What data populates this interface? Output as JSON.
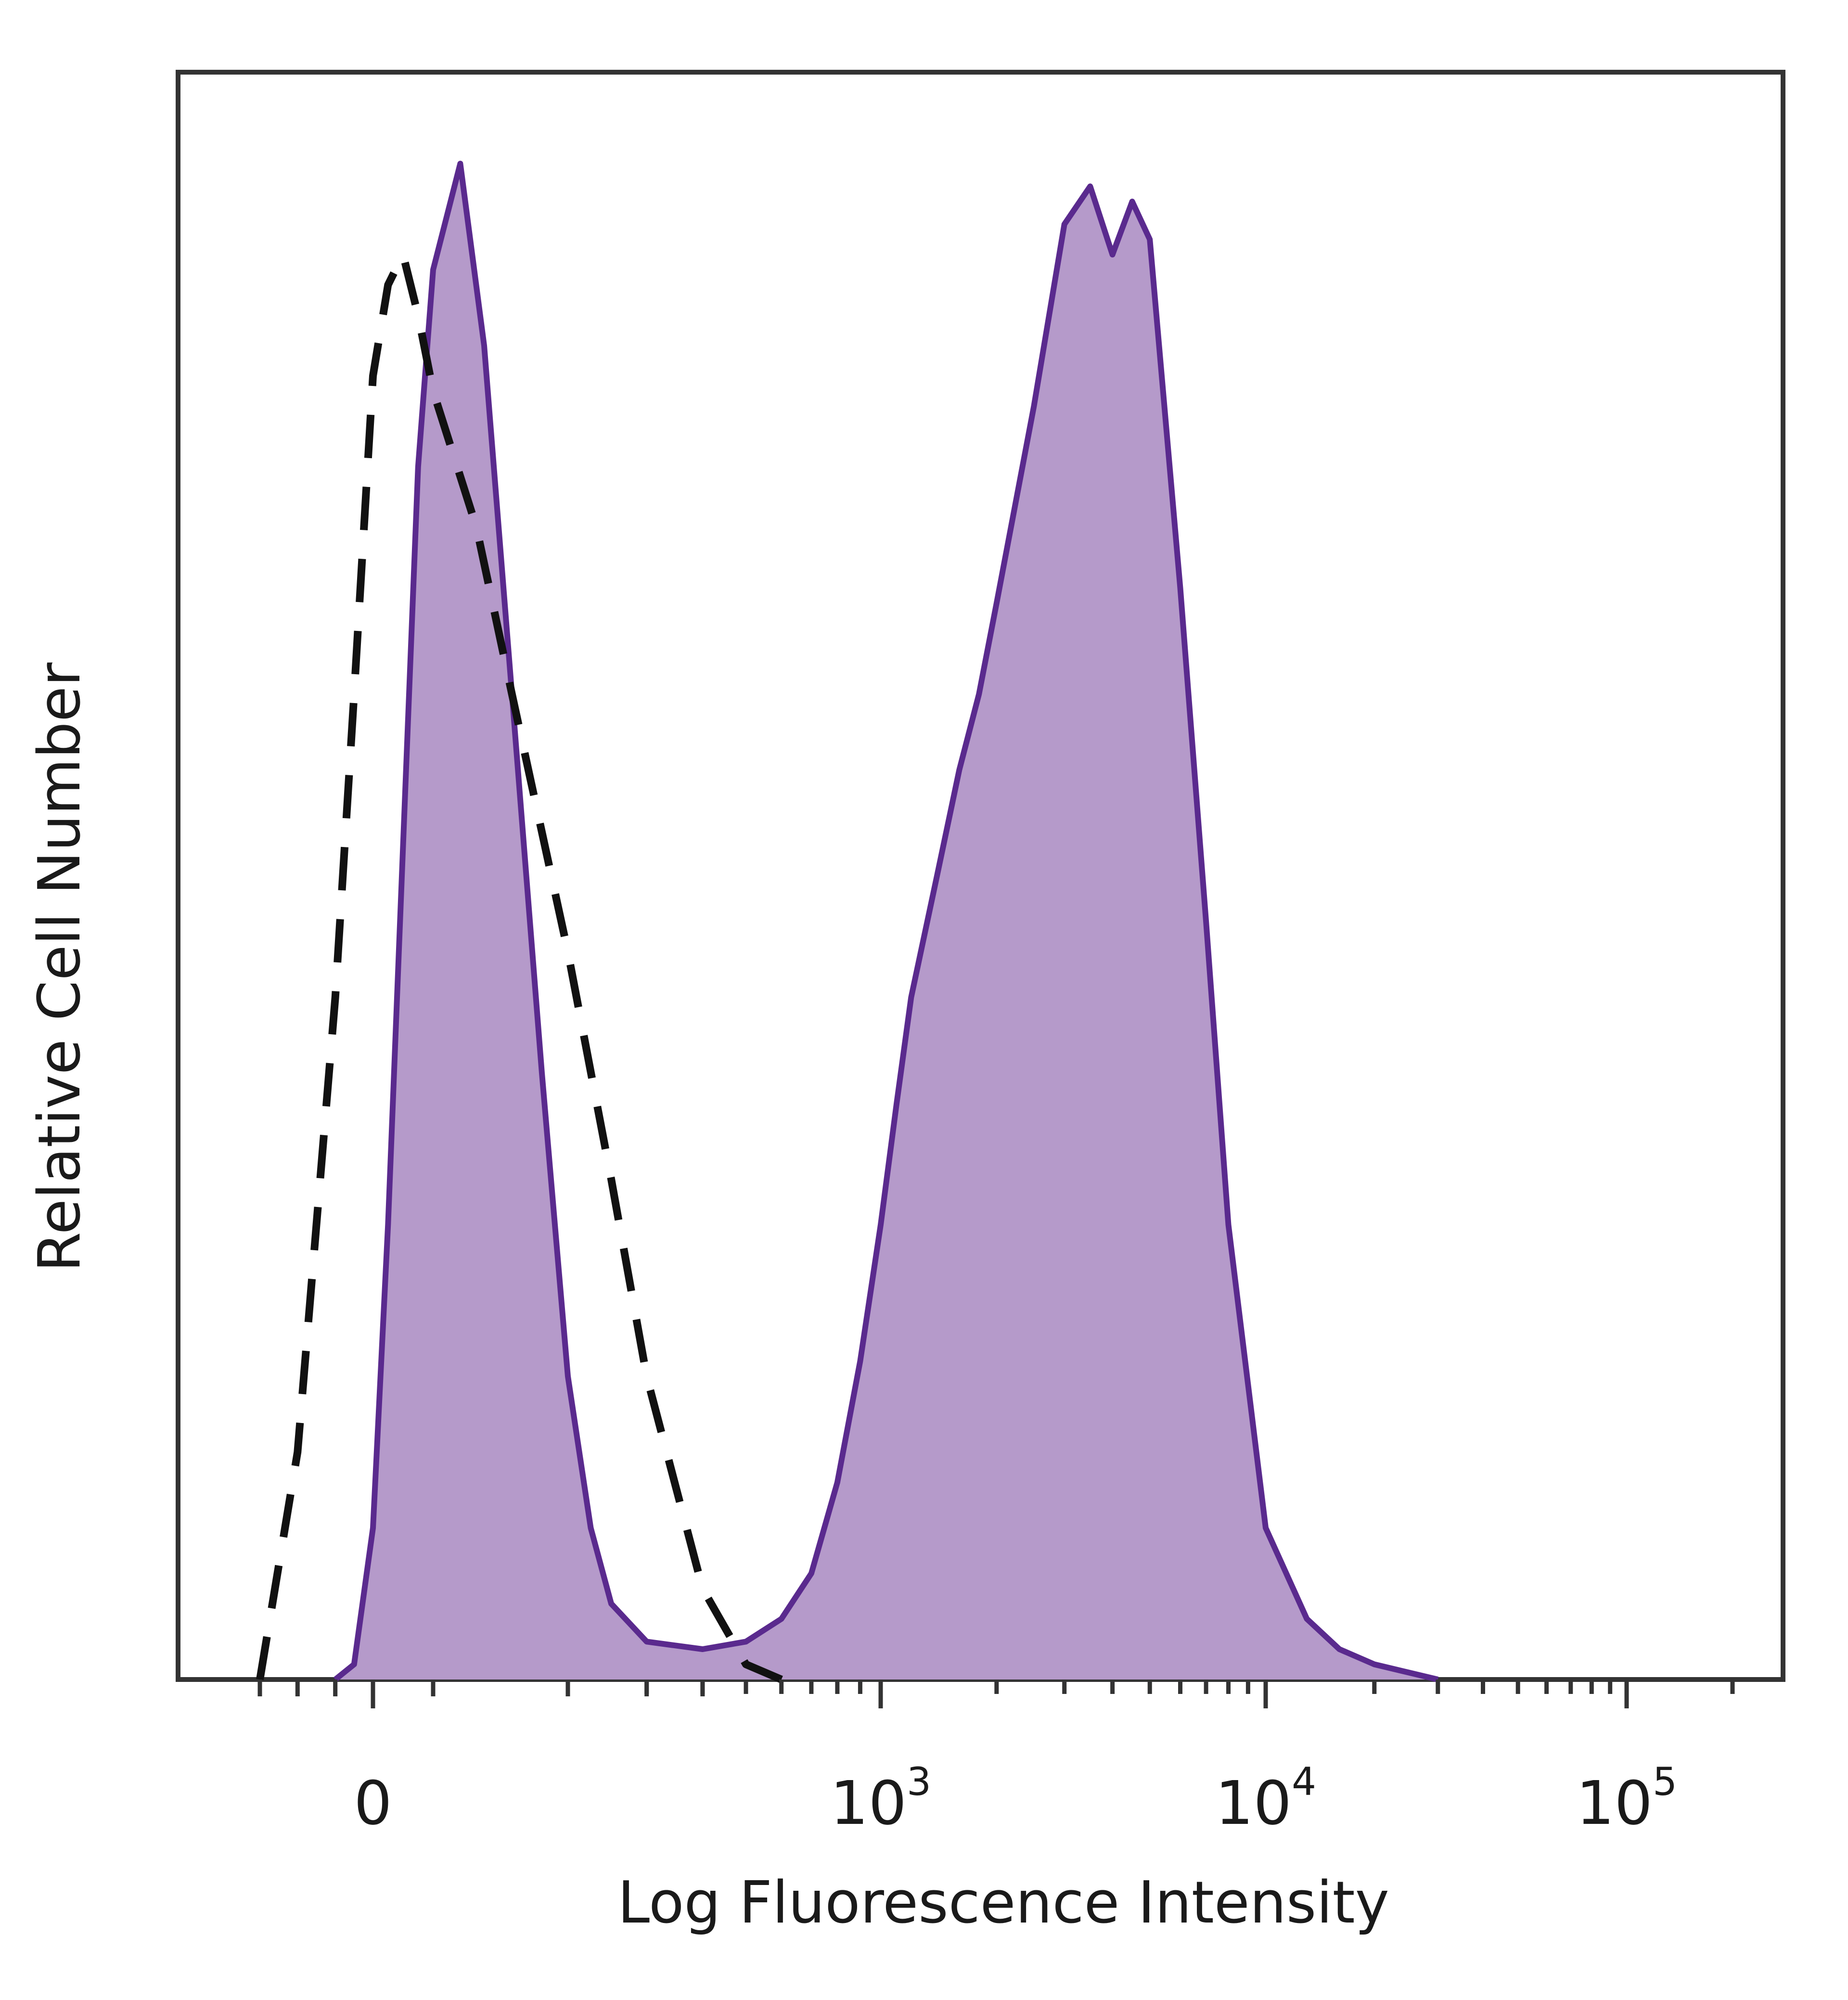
{
  "chart_data": {
    "type": "area",
    "xlabel": "Log Fluorescence Intensity",
    "ylabel": "Relative Cell Number",
    "x_scale": "biexponential (linear near 0, log above)",
    "x_tick_labels": [
      {
        "base": "0",
        "exp": "",
        "value": 0
      },
      {
        "base": "10",
        "exp": "3",
        "value": 1000
      },
      {
        "base": "10",
        "exp": "4",
        "value": 10000
      },
      {
        "base": "10",
        "exp": "5",
        "value": 100000
      }
    ],
    "ylim": [
      0,
      100
    ],
    "grid": false,
    "legend": "none",
    "colors": {
      "sample_fill": "#b59aca",
      "sample_line": "#5a2a8e",
      "control_line": "#111111",
      "frame": "#333333"
    },
    "series": [
      {
        "style": "filled-solid",
        "points": [
          [
            -100,
            0
          ],
          [
            -50,
            1
          ],
          [
            0,
            10
          ],
          [
            25,
            30
          ],
          [
            50,
            55
          ],
          [
            75,
            80
          ],
          [
            100,
            93
          ],
          [
            115,
            100
          ],
          [
            130,
            88
          ],
          [
            150,
            65
          ],
          [
            175,
            40
          ],
          [
            200,
            20
          ],
          [
            225,
            10
          ],
          [
            250,
            5
          ],
          [
            300,
            2.5
          ],
          [
            400,
            2
          ],
          [
            500,
            2.5
          ],
          [
            600,
            4
          ],
          [
            700,
            7
          ],
          [
            800,
            13
          ],
          [
            900,
            21
          ],
          [
            1000,
            30
          ],
          [
            1100,
            38
          ],
          [
            1200,
            45
          ],
          [
            1400,
            53
          ],
          [
            1600,
            60
          ],
          [
            1800,
            65
          ],
          [
            2000,
            71
          ],
          [
            2500,
            84
          ],
          [
            3000,
            96
          ],
          [
            3500,
            98.5
          ],
          [
            4000,
            94
          ],
          [
            4500,
            97.5
          ],
          [
            5000,
            95
          ],
          [
            6000,
            72
          ],
          [
            7000,
            50
          ],
          [
            8000,
            30
          ],
          [
            10000,
            10
          ],
          [
            13000,
            4
          ],
          [
            16000,
            2
          ],
          [
            20000,
            1
          ],
          [
            30000,
            0
          ]
        ]
      },
      {
        "style": "dashed",
        "points": [
          [
            -300,
            0
          ],
          [
            -200,
            15
          ],
          [
            -100,
            45
          ],
          [
            -50,
            65
          ],
          [
            0,
            86
          ],
          [
            25,
            92
          ],
          [
            50,
            94
          ],
          [
            75,
            90
          ],
          [
            100,
            85
          ],
          [
            125,
            76
          ],
          [
            150,
            65
          ],
          [
            200,
            48
          ],
          [
            250,
            33
          ],
          [
            300,
            20
          ],
          [
            400,
            6
          ],
          [
            500,
            1
          ],
          [
            600,
            0
          ]
        ]
      }
    ]
  }
}
